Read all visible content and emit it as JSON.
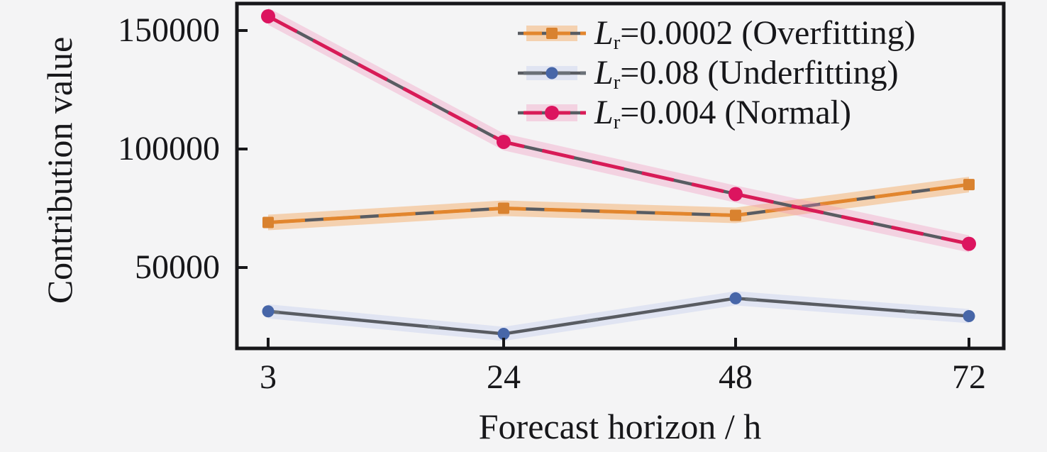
{
  "figure": {
    "background": "#f4f4f5",
    "spine_color": "#17171a"
  },
  "chart_data": {
    "type": "line",
    "title": "",
    "xlabel": "Forecast horizon / h",
    "ylabel": "Contribution value",
    "categories": [
      3,
      24,
      48,
      72
    ],
    "x_tick_labels": [
      "3",
      "24",
      "48",
      "72"
    ],
    "y_tick_labels": [
      "150000",
      "100000",
      "50000"
    ],
    "y_tick_values": [
      150000,
      100000,
      50000
    ],
    "ylim": [
      16000,
      161500
    ],
    "grid": false,
    "legend_position": "upper right",
    "legend_frame": false,
    "series": [
      {
        "name": "Lr=0.0002 (Overfitting)",
        "legend": {
          "var": "L",
          "sub": "r",
          "rest": "=0.0002 (Overfitting)"
        },
        "values": [
          69000,
          75000,
          72000,
          85000
        ],
        "line_color": "#e2862e",
        "marker_color": "#d9822f",
        "band_color": "rgba(245,166,94,0.45)",
        "marker": "square"
      },
      {
        "name": "Lr=0.08 (Underfitting)",
        "legend": {
          "var": "L",
          "sub": "r",
          "rest": "=0.08 (Underfitting)"
        },
        "values": [
          31500,
          22000,
          37000,
          29500
        ],
        "line_color": "#6a7077",
        "marker_color": "#4766a8",
        "band_color": "rgba(185,198,238,0.35)",
        "marker": "circle"
      },
      {
        "name": "Lr=0.004 (Normal)",
        "legend": {
          "var": "L",
          "sub": "r",
          "rest": "=0.004 (Normal)"
        },
        "values": [
          156000,
          103000,
          81000,
          60000
        ],
        "line_color": "#d81b57",
        "marker_color": "#dc145f",
        "band_color": "rgba(244,140,185,0.32)",
        "marker": "circle"
      }
    ]
  }
}
